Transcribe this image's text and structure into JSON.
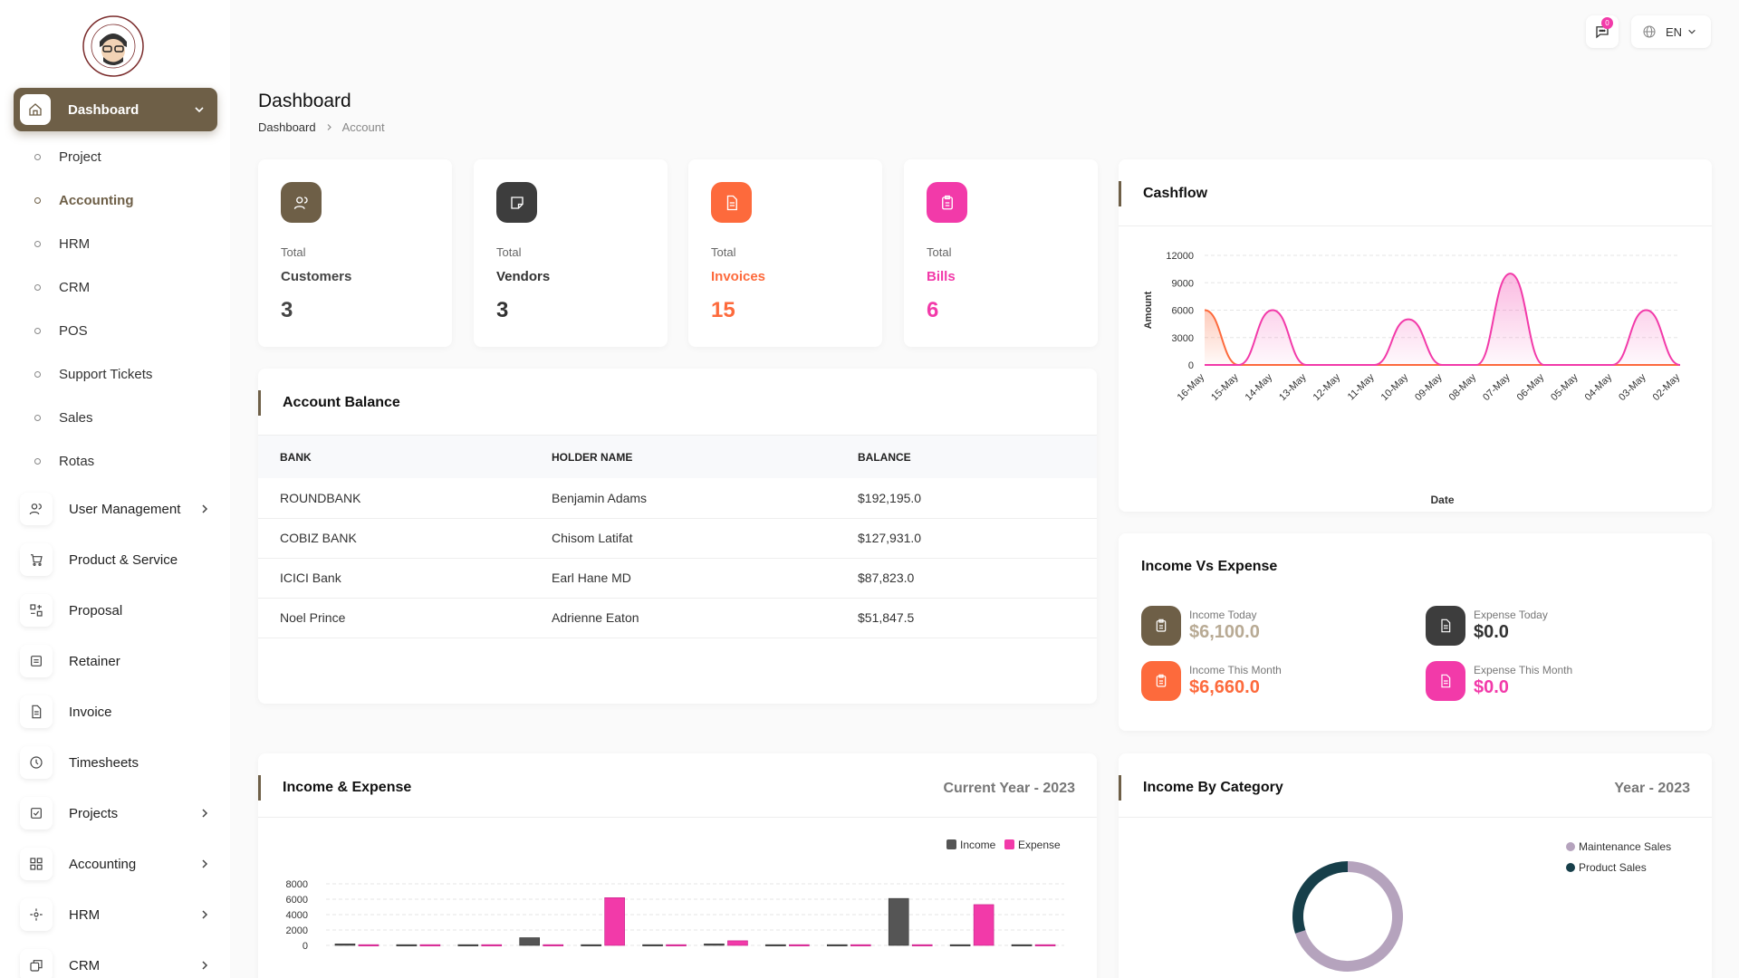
{
  "sidebar": {
    "logo_alt": "Mr. Accountant",
    "active": {
      "label": "Dashboard"
    },
    "sub_items": [
      {
        "label": "Project",
        "active": false
      },
      {
        "label": "Accounting",
        "active": true
      },
      {
        "label": "HRM",
        "active": false
      },
      {
        "label": "CRM",
        "active": false
      },
      {
        "label": "POS",
        "active": false
      },
      {
        "label": "Support Tickets",
        "active": false
      },
      {
        "label": "Sales",
        "active": false
      },
      {
        "label": "Rotas",
        "active": false
      }
    ],
    "items": [
      {
        "label": "User Management",
        "icon": "users-icon",
        "chevron": true
      },
      {
        "label": "Product & Service",
        "icon": "cart-icon",
        "chevron": false
      },
      {
        "label": "Proposal",
        "icon": "proposal-icon",
        "chevron": false
      },
      {
        "label": "Retainer",
        "icon": "retainer-icon",
        "chevron": false
      },
      {
        "label": "Invoice",
        "icon": "invoice-icon",
        "chevron": false
      },
      {
        "label": "Timesheets",
        "icon": "clock-icon",
        "chevron": false
      },
      {
        "label": "Projects",
        "icon": "checklist-icon",
        "chevron": true
      },
      {
        "label": "Accounting",
        "icon": "grid-icon",
        "chevron": true
      },
      {
        "label": "HRM",
        "icon": "hrm-icon",
        "chevron": true
      },
      {
        "label": "CRM",
        "icon": "crm-icon",
        "chevron": true
      }
    ]
  },
  "header": {
    "notification_count": "0",
    "language": "EN"
  },
  "page": {
    "title": "Dashboard",
    "breadcrumb": [
      "Dashboard",
      "Account"
    ]
  },
  "stats": [
    {
      "label1": "Total",
      "label2": "Customers",
      "value": "3",
      "color": "#6e5f47",
      "icon": "users-icon"
    },
    {
      "label1": "Total",
      "label2": "Vendors",
      "value": "3",
      "color": "#3d3d3d",
      "icon": "note-icon"
    },
    {
      "label1": "Total",
      "label2": "Invoices",
      "value": "15",
      "color": "#fd6a3c",
      "icon": "invoice-icon"
    },
    {
      "label1": "Total",
      "label2": "Bills",
      "value": "6",
      "color": "#f23aa9",
      "icon": "bill-icon"
    }
  ],
  "account_balance": {
    "title": "Account Balance",
    "columns": [
      "BANK",
      "HOLDER NAME",
      "BALANCE"
    ],
    "rows": [
      [
        "ROUNDBANK",
        "Benjamin Adams",
        "$192,195.0"
      ],
      [
        "COBIZ BANK",
        "Chisom Latifat",
        "$127,931.0"
      ],
      [
        "ICICI Bank",
        "Earl Hane MD",
        "$87,823.0"
      ],
      [
        "Noel Prince",
        "Adrienne Eaton",
        "$51,847.5"
      ]
    ]
  },
  "cashflow": {
    "title": "Cashflow"
  },
  "income_vs_expense": {
    "title": "Income Vs Expense",
    "items": [
      {
        "label": "Income Today",
        "value": "$6,100.0",
        "color": "#6e5f47",
        "value_color": "#b8aa94"
      },
      {
        "label": "Expense Today",
        "value": "$0.0",
        "color": "#3d3d3d",
        "value_color": "#333"
      },
      {
        "label": "Income This Month",
        "value": "$6,660.0",
        "color": "#fd6a3c",
        "value_color": "#fd6a3c"
      },
      {
        "label": "Expense This Month",
        "value": "$0.0",
        "color": "#f23aa9",
        "value_color": "#f23aa9"
      }
    ]
  },
  "income_expense": {
    "title": "Income & Expense",
    "subtitle": "Current Year - 2023"
  },
  "income_by_category": {
    "title": "Income By Category",
    "subtitle": "Year - 2023"
  },
  "chart_data": [
    {
      "type": "area",
      "title": "",
      "xlabel": "Date",
      "ylabel": "Amount",
      "categories": [
        "16-May",
        "15-May",
        "14-May",
        "13-May",
        "12-May",
        "11-May",
        "10-May",
        "09-May",
        "08-May",
        "07-May",
        "06-May",
        "05-May",
        "04-May",
        "03-May",
        "02-May"
      ],
      "yticks": [
        0,
        3000,
        6000,
        9000,
        12000
      ],
      "ylim": [
        0,
        12000
      ],
      "grid": true,
      "series": [
        {
          "values": [
            6000,
            0,
            0,
            0,
            0,
            0,
            0,
            0,
            0,
            0,
            0,
            0,
            0,
            0,
            0
          ],
          "color": "#fd6a3c"
        },
        {
          "values": [
            0,
            0,
            6000,
            0,
            0,
            0,
            5000,
            0,
            0,
            10000,
            0,
            0,
            0,
            6000,
            0
          ],
          "color": "#f23aa9"
        }
      ]
    },
    {
      "type": "bar",
      "title": "",
      "yticks": [
        0,
        2000,
        4000,
        6000,
        8000
      ],
      "ylim": [
        0,
        8000
      ],
      "grid": true,
      "legend": "top-right",
      "series": [
        {
          "name": "Income",
          "color": "#555555",
          "values": [
            200,
            100,
            100,
            1000,
            100,
            100,
            200,
            100,
            100,
            6100,
            100,
            100
          ]
        },
        {
          "name": "Expense",
          "color": "#f23aa9",
          "values": [
            100,
            100,
            100,
            100,
            6200,
            100,
            600,
            100,
            100,
            100,
            5300,
            100
          ]
        }
      ]
    },
    {
      "type": "pie",
      "title": "",
      "legend": "right",
      "categories": [
        "Maintenance Sales",
        "Product Sales"
      ],
      "values": [
        70,
        30
      ],
      "colors": [
        "#b5a3bd",
        "#173f4a"
      ]
    }
  ]
}
